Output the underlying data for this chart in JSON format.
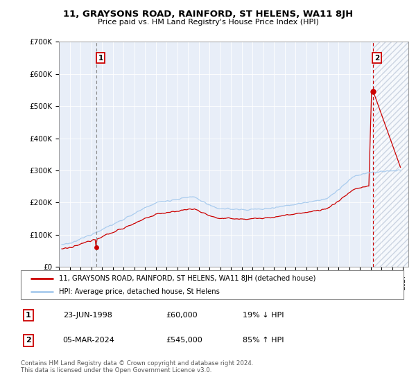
{
  "title": "11, GRAYSONS ROAD, RAINFORD, ST HELENS, WA11 8JH",
  "subtitle": "Price paid vs. HM Land Registry's House Price Index (HPI)",
  "hpi_color": "#aaccee",
  "price_color": "#cc0000",
  "marker_color": "#cc0000",
  "point1_year": 1998.48,
  "point1_value": 60000,
  "point2_year": 2024.17,
  "point2_value": 545000,
  "xmin": 1995.25,
  "xmax": 2027.5,
  "ymin": 0,
  "ymax": 700000,
  "yticks": [
    0,
    100000,
    200000,
    300000,
    400000,
    500000,
    600000,
    700000
  ],
  "ytick_labels": [
    "£0",
    "£100K",
    "£200K",
    "£300K",
    "£400K",
    "£500K",
    "£600K",
    "£700K"
  ],
  "legend_line1": "11, GRAYSONS ROAD, RAINFORD, ST HELENS, WA11 8JH (detached house)",
  "legend_line2": "HPI: Average price, detached house, St Helens",
  "table_row1_num": "1",
  "table_row1_date": "23-JUN-1998",
  "table_row1_price": "£60,000",
  "table_row1_pct": "19% ↓ HPI",
  "table_row2_num": "2",
  "table_row2_date": "05-MAR-2024",
  "table_row2_price": "£545,000",
  "table_row2_pct": "85% ↑ HPI",
  "footer": "Contains HM Land Registry data © Crown copyright and database right 2024.\nThis data is licensed under the Open Government Licence v3.0.",
  "bg_color": "#e8eef8",
  "future_start_year": 2024.25,
  "vline1_color": "#cc0000",
  "vline2_color": "#cc0000",
  "box_edge_color": "#cc0000"
}
